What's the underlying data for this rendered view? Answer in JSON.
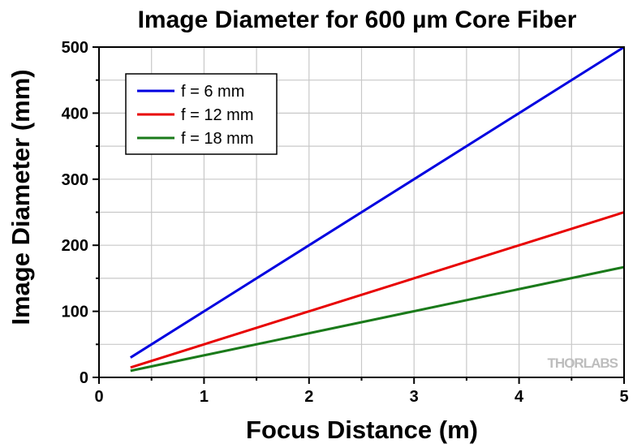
{
  "chart_data": {
    "type": "line",
    "title": "Image Diameter for 600 µm Core Fiber",
    "xlabel": "Focus Distance (m)",
    "ylabel": "Image Diameter (mm)",
    "xlim": [
      0,
      5
    ],
    "ylim": [
      0,
      500
    ],
    "x_ticks": [
      0,
      1,
      2,
      3,
      4,
      5
    ],
    "y_ticks": [
      0,
      100,
      200,
      300,
      400,
      500
    ],
    "grid": true,
    "legend_position": "top-left",
    "series": [
      {
        "name": "f = 6 mm",
        "color": "#0000e0",
        "points": [
          [
            0.3,
            30
          ],
          [
            5,
            500
          ]
        ]
      },
      {
        "name": "f = 12 mm",
        "color": "#e80000",
        "points": [
          [
            0.3,
            15
          ],
          [
            5,
            250
          ]
        ]
      },
      {
        "name": "f = 18 mm",
        "color": "#1a7a1a",
        "points": [
          [
            0.3,
            10
          ],
          [
            5,
            167
          ]
        ]
      }
    ],
    "watermark": "THORLABS"
  }
}
